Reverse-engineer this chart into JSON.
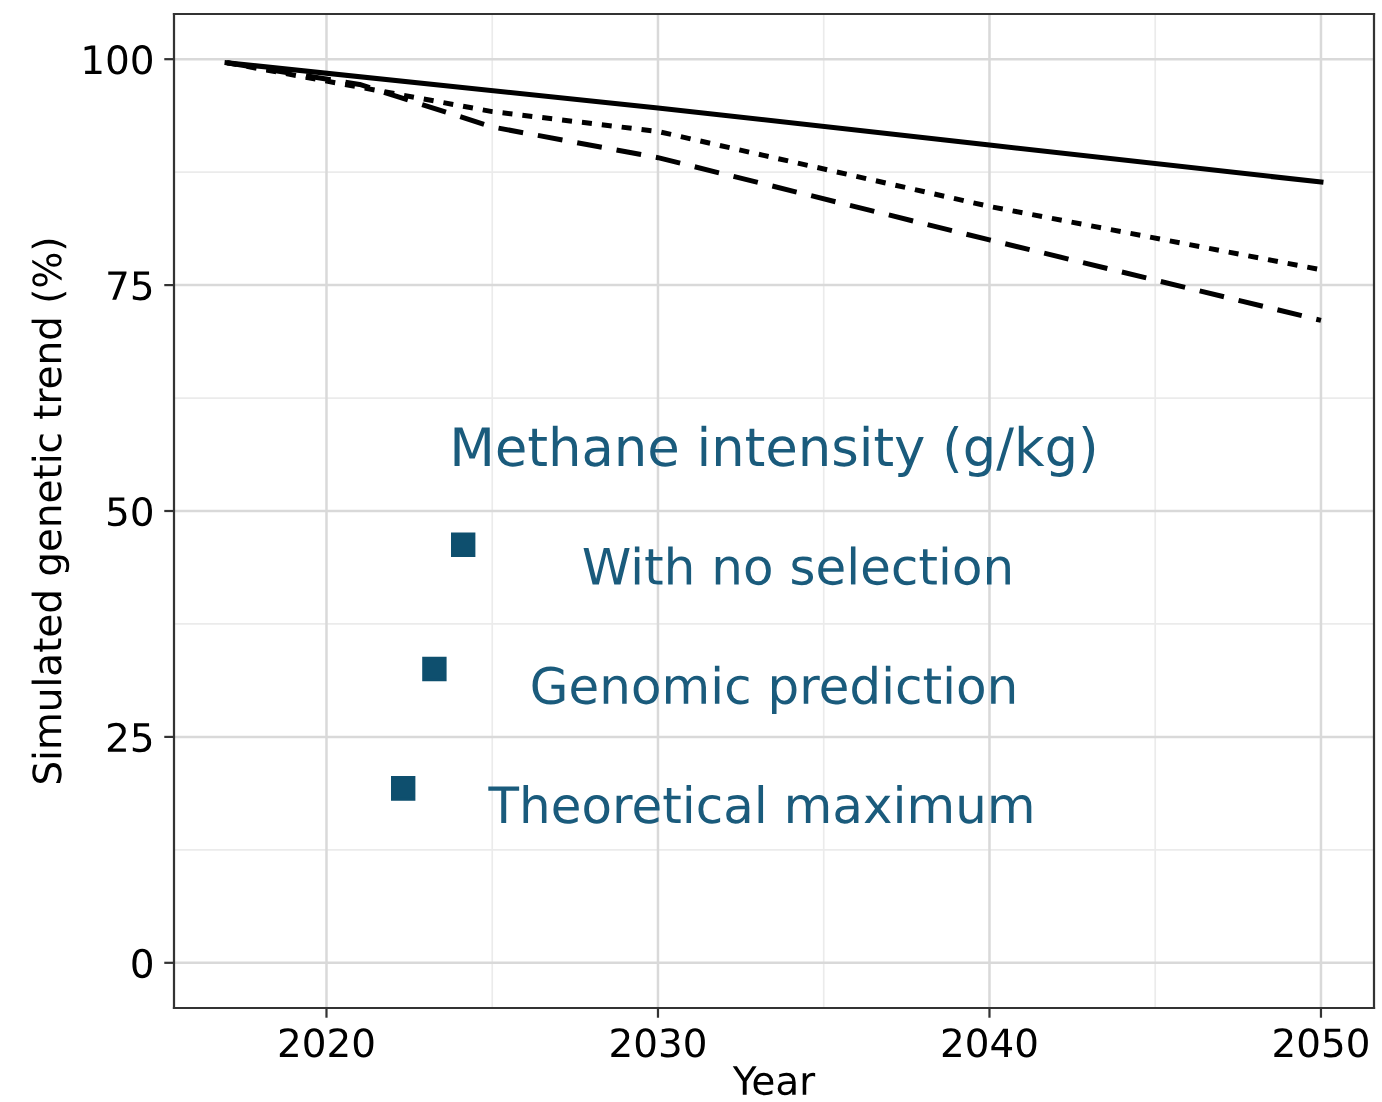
{
  "chart_data": {
    "type": "line",
    "xlabel": "Year",
    "ylabel": "Simulated genetic trend (%)",
    "xlim": [
      2015.4,
      2051.6
    ],
    "xticks": [
      2020,
      2030,
      2040,
      2050
    ],
    "ylim": [
      -5,
      105
    ],
    "yticks": [
      0,
      25,
      50,
      75,
      100
    ],
    "grid": true,
    "series": [
      {
        "color": "#000000",
        "line_style": "solid",
        "x": [
          2017,
          2030,
          2040,
          2050
        ],
        "values": [
          99.6,
          94.6,
          90.5,
          86.4
        ]
      },
      {
        "color": "#000000",
        "line_style": "dotted",
        "x": [
          2017,
          2025,
          2030,
          2040,
          2050
        ],
        "values": [
          99.6,
          94.2,
          92.0,
          83.7,
          76.7
        ]
      },
      {
        "color": "#000000",
        "line_style": "dashed",
        "x": [
          2017,
          2021,
          2025,
          2030,
          2040,
          2050
        ],
        "values": [
          99.6,
          97.2,
          92.5,
          89.1,
          80.0,
          71.1
        ]
      }
    ],
    "annotations": [
      "Methane intensity (g/kg)",
      "With no selection",
      "Genomic prediction",
      "Theoretical maximum"
    ]
  }
}
